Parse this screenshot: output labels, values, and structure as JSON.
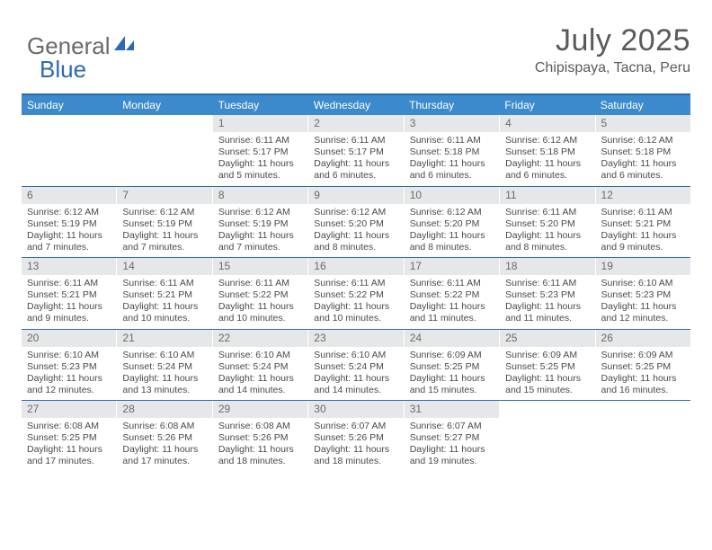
{
  "logo": {
    "part1": "General",
    "part2": "Blue"
  },
  "header": {
    "title": "July 2025",
    "subtitle": "Chipispaya, Tacna, Peru"
  },
  "colors": {
    "header_bg": "#3c8acb",
    "rule": "#2c6bb3",
    "daynum_bg": "#e6e7e8",
    "text": "#4a4a4a",
    "title_text": "#5a5a5a"
  },
  "weekdays": [
    "Sunday",
    "Monday",
    "Tuesday",
    "Wednesday",
    "Thursday",
    "Friday",
    "Saturday"
  ],
  "layout": {
    "first_weekday_index": 2,
    "days_in_month": 31
  },
  "days": {
    "1": {
      "sunrise": "6:11 AM",
      "sunset": "5:17 PM",
      "daylight": "11 hours and 5 minutes."
    },
    "2": {
      "sunrise": "6:11 AM",
      "sunset": "5:17 PM",
      "daylight": "11 hours and 6 minutes."
    },
    "3": {
      "sunrise": "6:11 AM",
      "sunset": "5:18 PM",
      "daylight": "11 hours and 6 minutes."
    },
    "4": {
      "sunrise": "6:12 AM",
      "sunset": "5:18 PM",
      "daylight": "11 hours and 6 minutes."
    },
    "5": {
      "sunrise": "6:12 AM",
      "sunset": "5:18 PM",
      "daylight": "11 hours and 6 minutes."
    },
    "6": {
      "sunrise": "6:12 AM",
      "sunset": "5:19 PM",
      "daylight": "11 hours and 7 minutes."
    },
    "7": {
      "sunrise": "6:12 AM",
      "sunset": "5:19 PM",
      "daylight": "11 hours and 7 minutes."
    },
    "8": {
      "sunrise": "6:12 AM",
      "sunset": "5:19 PM",
      "daylight": "11 hours and 7 minutes."
    },
    "9": {
      "sunrise": "6:12 AM",
      "sunset": "5:20 PM",
      "daylight": "11 hours and 8 minutes."
    },
    "10": {
      "sunrise": "6:12 AM",
      "sunset": "5:20 PM",
      "daylight": "11 hours and 8 minutes."
    },
    "11": {
      "sunrise": "6:11 AM",
      "sunset": "5:20 PM",
      "daylight": "11 hours and 8 minutes."
    },
    "12": {
      "sunrise": "6:11 AM",
      "sunset": "5:21 PM",
      "daylight": "11 hours and 9 minutes."
    },
    "13": {
      "sunrise": "6:11 AM",
      "sunset": "5:21 PM",
      "daylight": "11 hours and 9 minutes."
    },
    "14": {
      "sunrise": "6:11 AM",
      "sunset": "5:21 PM",
      "daylight": "11 hours and 10 minutes."
    },
    "15": {
      "sunrise": "6:11 AM",
      "sunset": "5:22 PM",
      "daylight": "11 hours and 10 minutes."
    },
    "16": {
      "sunrise": "6:11 AM",
      "sunset": "5:22 PM",
      "daylight": "11 hours and 10 minutes."
    },
    "17": {
      "sunrise": "6:11 AM",
      "sunset": "5:22 PM",
      "daylight": "11 hours and 11 minutes."
    },
    "18": {
      "sunrise": "6:11 AM",
      "sunset": "5:23 PM",
      "daylight": "11 hours and 11 minutes."
    },
    "19": {
      "sunrise": "6:10 AM",
      "sunset": "5:23 PM",
      "daylight": "11 hours and 12 minutes."
    },
    "20": {
      "sunrise": "6:10 AM",
      "sunset": "5:23 PM",
      "daylight": "11 hours and 12 minutes."
    },
    "21": {
      "sunrise": "6:10 AM",
      "sunset": "5:24 PM",
      "daylight": "11 hours and 13 minutes."
    },
    "22": {
      "sunrise": "6:10 AM",
      "sunset": "5:24 PM",
      "daylight": "11 hours and 14 minutes."
    },
    "23": {
      "sunrise": "6:10 AM",
      "sunset": "5:24 PM",
      "daylight": "11 hours and 14 minutes."
    },
    "24": {
      "sunrise": "6:09 AM",
      "sunset": "5:25 PM",
      "daylight": "11 hours and 15 minutes."
    },
    "25": {
      "sunrise": "6:09 AM",
      "sunset": "5:25 PM",
      "daylight": "11 hours and 15 minutes."
    },
    "26": {
      "sunrise": "6:09 AM",
      "sunset": "5:25 PM",
      "daylight": "11 hours and 16 minutes."
    },
    "27": {
      "sunrise": "6:08 AM",
      "sunset": "5:25 PM",
      "daylight": "11 hours and 17 minutes."
    },
    "28": {
      "sunrise": "6:08 AM",
      "sunset": "5:26 PM",
      "daylight": "11 hours and 17 minutes."
    },
    "29": {
      "sunrise": "6:08 AM",
      "sunset": "5:26 PM",
      "daylight": "11 hours and 18 minutes."
    },
    "30": {
      "sunrise": "6:07 AM",
      "sunset": "5:26 PM",
      "daylight": "11 hours and 18 minutes."
    },
    "31": {
      "sunrise": "6:07 AM",
      "sunset": "5:27 PM",
      "daylight": "11 hours and 19 minutes."
    }
  },
  "labels": {
    "sunrise": "Sunrise:",
    "sunset": "Sunset:",
    "daylight": "Daylight:"
  }
}
